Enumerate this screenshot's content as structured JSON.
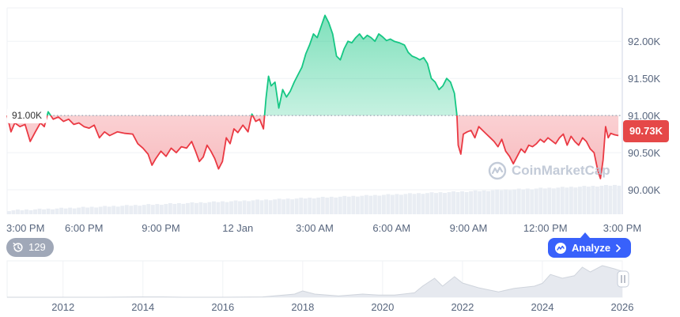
{
  "chart_data": {
    "type": "area",
    "reference_value": 91000,
    "reference_label": "91.00K",
    "current_value": 90730,
    "current_label": "90.73K",
    "y_range": [
      89670,
      92450
    ],
    "y_ticks": [
      {
        "value": 90000,
        "label": "90.00K"
      },
      {
        "value": 90500,
        "label": "90.50K"
      },
      {
        "value": 91000,
        "label": "91.00K"
      },
      {
        "value": 91500,
        "label": "91.50K"
      },
      {
        "value": 92000,
        "label": "92.00K"
      }
    ],
    "x_range": [
      0,
      24
    ],
    "x_ticks": [
      {
        "hour": 0,
        "label": "3:00 PM"
      },
      {
        "hour": 3,
        "label": "6:00 PM"
      },
      {
        "hour": 6,
        "label": "9:00 PM"
      },
      {
        "hour": 9,
        "label": "12 Jan"
      },
      {
        "hour": 12,
        "label": "3:00 AM"
      },
      {
        "hour": 15,
        "label": "6:00 AM"
      },
      {
        "hour": 18,
        "label": "9:00 AM"
      },
      {
        "hour": 21,
        "label": "12:00 PM"
      },
      {
        "hour": 24,
        "label": "3:00 PM"
      }
    ],
    "series": [
      {
        "values": [
          [
            0,
            91000
          ],
          [
            0.15,
            90780
          ],
          [
            0.3,
            90900
          ],
          [
            0.5,
            90850
          ],
          [
            0.7,
            90880
          ],
          [
            0.9,
            90650
          ],
          [
            1.1,
            90780
          ],
          [
            1.3,
            90900
          ],
          [
            1.45,
            90850
          ],
          [
            1.6,
            91050
          ],
          [
            1.8,
            90950
          ],
          [
            2.0,
            90980
          ],
          [
            2.2,
            90920
          ],
          [
            2.4,
            90950
          ],
          [
            2.6,
            90880
          ],
          [
            2.8,
            90900
          ],
          [
            3.0,
            90850
          ],
          [
            3.2,
            90830
          ],
          [
            3.4,
            90870
          ],
          [
            3.6,
            90700
          ],
          [
            3.8,
            90780
          ],
          [
            4.0,
            90730
          ],
          [
            4.3,
            90780
          ],
          [
            4.6,
            90760
          ],
          [
            4.9,
            90750
          ],
          [
            5.1,
            90620
          ],
          [
            5.3,
            90560
          ],
          [
            5.5,
            90480
          ],
          [
            5.65,
            90330
          ],
          [
            5.8,
            90420
          ],
          [
            6.0,
            90520
          ],
          [
            6.2,
            90450
          ],
          [
            6.4,
            90560
          ],
          [
            6.6,
            90500
          ],
          [
            6.8,
            90580
          ],
          [
            7.0,
            90560
          ],
          [
            7.2,
            90650
          ],
          [
            7.35,
            90520
          ],
          [
            7.5,
            90380
          ],
          [
            7.65,
            90440
          ],
          [
            7.8,
            90600
          ],
          [
            7.95,
            90520
          ],
          [
            8.1,
            90420
          ],
          [
            8.25,
            90280
          ],
          [
            8.4,
            90380
          ],
          [
            8.55,
            90700
          ],
          [
            8.7,
            90620
          ],
          [
            8.85,
            90820
          ],
          [
            9.0,
            90770
          ],
          [
            9.2,
            90870
          ],
          [
            9.4,
            90780
          ],
          [
            9.55,
            91020
          ],
          [
            9.7,
            90920
          ],
          [
            9.85,
            90950
          ],
          [
            10.0,
            90820
          ],
          [
            10.1,
            91230
          ],
          [
            10.2,
            91530
          ],
          [
            10.3,
            91400
          ],
          [
            10.45,
            91450
          ],
          [
            10.6,
            91100
          ],
          [
            10.75,
            91350
          ],
          [
            10.9,
            91250
          ],
          [
            11.05,
            91330
          ],
          [
            11.2,
            91450
          ],
          [
            11.35,
            91550
          ],
          [
            11.5,
            91650
          ],
          [
            11.65,
            91830
          ],
          [
            11.8,
            91950
          ],
          [
            11.95,
            92100
          ],
          [
            12.1,
            92050
          ],
          [
            12.25,
            92200
          ],
          [
            12.4,
            92350
          ],
          [
            12.55,
            92250
          ],
          [
            12.7,
            92100
          ],
          [
            12.85,
            91800
          ],
          [
            13.0,
            91750
          ],
          [
            13.15,
            91900
          ],
          [
            13.3,
            92000
          ],
          [
            13.45,
            91980
          ],
          [
            13.6,
            92050
          ],
          [
            13.75,
            92100
          ],
          [
            13.9,
            92030
          ],
          [
            14.05,
            92080
          ],
          [
            14.2,
            92050
          ],
          [
            14.35,
            92000
          ],
          [
            14.5,
            92100
          ],
          [
            14.65,
            92060
          ],
          [
            14.8,
            92010
          ],
          [
            14.95,
            92030
          ],
          [
            15.1,
            92000
          ],
          [
            15.3,
            91980
          ],
          [
            15.5,
            91950
          ],
          [
            15.65,
            91850
          ],
          [
            15.8,
            91800
          ],
          [
            15.95,
            91780
          ],
          [
            16.1,
            91750
          ],
          [
            16.25,
            91780
          ],
          [
            16.4,
            91700
          ],
          [
            16.55,
            91500
          ],
          [
            16.7,
            91450
          ],
          [
            16.85,
            91350
          ],
          [
            17.0,
            91400
          ],
          [
            17.15,
            91500
          ],
          [
            17.3,
            91450
          ],
          [
            17.45,
            91300
          ],
          [
            17.55,
            91000
          ],
          [
            17.6,
            90600
          ],
          [
            17.7,
            90480
          ],
          [
            17.8,
            90750
          ],
          [
            17.95,
            90780
          ],
          [
            18.1,
            90800
          ],
          [
            18.25,
            90700
          ],
          [
            18.4,
            90850
          ],
          [
            18.55,
            90800
          ],
          [
            18.7,
            90750
          ],
          [
            18.85,
            90700
          ],
          [
            19.0,
            90650
          ],
          [
            19.15,
            90580
          ],
          [
            19.3,
            90680
          ],
          [
            19.45,
            90520
          ],
          [
            19.6,
            90450
          ],
          [
            19.75,
            90350
          ],
          [
            19.9,
            90450
          ],
          [
            20.05,
            90550
          ],
          [
            20.2,
            90500
          ],
          [
            20.35,
            90600
          ],
          [
            20.5,
            90580
          ],
          [
            20.65,
            90620
          ],
          [
            20.8,
            90680
          ],
          [
            20.95,
            90640
          ],
          [
            21.1,
            90700
          ],
          [
            21.25,
            90660
          ],
          [
            21.4,
            90620
          ],
          [
            21.55,
            90700
          ],
          [
            21.7,
            90750
          ],
          [
            21.85,
            90600
          ],
          [
            22.0,
            90720
          ],
          [
            22.15,
            90650
          ],
          [
            22.3,
            90600
          ],
          [
            22.45,
            90700
          ],
          [
            22.6,
            90650
          ],
          [
            22.75,
            90550
          ],
          [
            22.9,
            90500
          ],
          [
            23.05,
            90250
          ],
          [
            23.15,
            90150
          ],
          [
            23.25,
            90400
          ],
          [
            23.35,
            90850
          ],
          [
            23.45,
            90700
          ],
          [
            23.55,
            90760
          ],
          [
            23.7,
            90740
          ],
          [
            23.85,
            90730
          ]
        ]
      }
    ],
    "volume_min": 0,
    "volume_max": 30,
    "volume_step_hours": 0.17,
    "volume_start": 3,
    "volume_end": 28,
    "colors": {
      "up_line": "#16c784",
      "down_line": "#ea3943",
      "up_fill": "#16c784",
      "down_fill": "#ea3943",
      "grid": "#eff2f5",
      "axis": "#cfd6e4",
      "volume": "#e9edf3",
      "history_area": "#e6e9ef",
      "history_line": "#cfd4dc"
    }
  },
  "history": {
    "x_ticks": [
      "2012",
      "2014",
      "2016",
      "2018",
      "2020",
      "2022",
      "2024",
      "2026"
    ],
    "x_range": [
      2010.6,
      2026
    ],
    "points": [
      [
        2010.6,
        0.0
      ],
      [
        2011,
        0.0
      ],
      [
        2012,
        0.0
      ],
      [
        2013,
        0.0
      ],
      [
        2013.9,
        0.01
      ],
      [
        2014.5,
        0.01
      ],
      [
        2015,
        0.0
      ],
      [
        2016,
        0.0
      ],
      [
        2017,
        0.01
      ],
      [
        2017.8,
        0.1
      ],
      [
        2018,
        0.2
      ],
      [
        2018.3,
        0.1
      ],
      [
        2018.9,
        0.04
      ],
      [
        2019.5,
        0.1
      ],
      [
        2019.9,
        0.07
      ],
      [
        2020.3,
        0.07
      ],
      [
        2020.8,
        0.14
      ],
      [
        2021.0,
        0.35
      ],
      [
        2021.3,
        0.6
      ],
      [
        2021.5,
        0.35
      ],
      [
        2021.8,
        0.65
      ],
      [
        2022.0,
        0.45
      ],
      [
        2022.4,
        0.3
      ],
      [
        2022.9,
        0.17
      ],
      [
        2023.3,
        0.28
      ],
      [
        2023.8,
        0.35
      ],
      [
        2024.0,
        0.44
      ],
      [
        2024.2,
        0.72
      ],
      [
        2024.5,
        0.6
      ],
      [
        2024.8,
        0.68
      ],
      [
        2025.0,
        0.95
      ],
      [
        2025.2,
        0.8
      ],
      [
        2025.5,
        1.0
      ],
      [
        2025.8,
        0.9
      ],
      [
        2026,
        0.82
      ]
    ]
  },
  "controls": {
    "history_count": "129",
    "analyze_label": "Analyze",
    "watermark": "CoinMarketCap"
  }
}
